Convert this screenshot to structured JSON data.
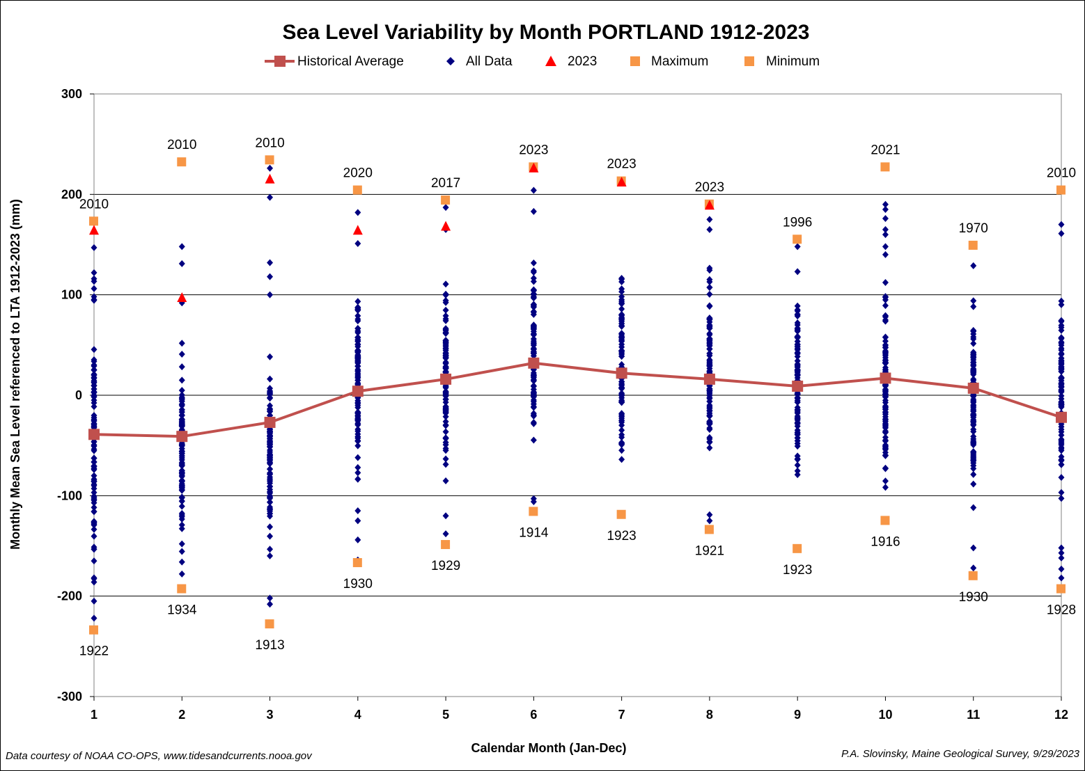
{
  "chart_data": {
    "type": "scatter",
    "title": "Sea Level Variability by Month PORTLAND  1912-2023",
    "xlabel": "Calendar Month (Jan-Dec)",
    "ylabel": "Monthly Mean Sea Level referenced to LTA 1912-2023 (mm)",
    "xlim": [
      1,
      12
    ],
    "ylim": [
      -300,
      300
    ],
    "x_ticks": [
      1,
      2,
      3,
      4,
      5,
      6,
      7,
      8,
      9,
      10,
      11,
      12
    ],
    "y_ticks": [
      -300,
      -200,
      -100,
      0,
      100,
      200,
      300
    ],
    "grid": "horizontal",
    "legend_position": "top",
    "legend": [
      "Historical Average",
      "All Data",
      "2023",
      "Maximum",
      "Minimum"
    ],
    "series": [
      {
        "name": "Historical Average",
        "type": "line",
        "color": "#c0504d",
        "x": [
          1,
          2,
          3,
          4,
          5,
          6,
          7,
          8,
          9,
          10,
          11,
          12
        ],
        "y": [
          -39,
          -41,
          -27,
          4,
          16,
          32,
          22,
          16,
          9,
          17,
          7,
          -22
        ]
      },
      {
        "name": "All Data",
        "type": "scatter",
        "color": "#000080",
        "months": [
          {
            "x": 1,
            "range": [
              -222,
              147
            ],
            "outliers": [
              -222,
              -205,
              -186,
              -165,
              122,
              116,
              147
            ]
          },
          {
            "x": 2,
            "range": [
              -180,
              73
            ],
            "outliers": [
              -178,
              -166,
              -148,
              92,
              131,
              148
            ]
          },
          {
            "x": 3,
            "range": [
              -180,
              60
            ],
            "outliers": [
              -208,
              -202,
              -160,
              100,
              118,
              132,
              197,
              226
            ]
          },
          {
            "x": 4,
            "range": [
              -108,
              140
            ],
            "outliers": [
              -164,
              -144,
              -125,
              -115,
              151,
              182
            ]
          },
          {
            "x": 5,
            "range": [
              -103,
              140
            ],
            "outliers": [
              -138,
              -120,
              165,
              187
            ]
          },
          {
            "x": 6,
            "range": [
              -90,
              175
            ],
            "outliers": [
              -106,
              -103,
              183,
              204,
              226
            ]
          },
          {
            "x": 7,
            "range": [
              -103,
              172
            ],
            "outliers": [
              212
            ]
          },
          {
            "x": 8,
            "range": [
              -100,
              148
            ],
            "outliers": [
              -125,
              -119,
              165,
              175,
              190
            ]
          },
          {
            "x": 9,
            "range": [
              -115,
              148
            ],
            "outliers": [
              148
            ]
          },
          {
            "x": 10,
            "range": [
              -118,
              127
            ],
            "outliers": [
              140,
              148,
              160,
              165,
              176,
              185,
              190
            ]
          },
          {
            "x": 11,
            "range": [
              -135,
              143
            ],
            "outliers": [
              -172,
              -152
            ]
          },
          {
            "x": 12,
            "range": [
              -135,
              132
            ],
            "outliers": [
              -182,
              -173,
              -162,
              -157,
              -152,
              161,
              170
            ]
          }
        ]
      },
      {
        "name": "2023",
        "type": "scatter",
        "color": "#ff0000",
        "marker": "triangle",
        "x": [
          1,
          2,
          3,
          4,
          5,
          6,
          7,
          8
        ],
        "y": [
          164,
          97,
          215,
          164,
          168,
          226,
          212,
          189
        ]
      },
      {
        "name": "Maximum",
        "type": "scatter",
        "color": "#f79646",
        "marker": "square",
        "x": [
          1,
          2,
          3,
          4,
          5,
          6,
          7,
          8,
          9,
          10,
          11,
          12
        ],
        "y": [
          173,
          232,
          234,
          204,
          194,
          227,
          213,
          190,
          155,
          227,
          149,
          204
        ],
        "labels": [
          "2010",
          "2010",
          "2010",
          "2020",
          "2017",
          "2023",
          "2023",
          "2023",
          "1996",
          "2021",
          "1970",
          "2010"
        ]
      },
      {
        "name": "Minimum",
        "type": "scatter",
        "color": "#f79646",
        "marker": "square",
        "x": [
          1,
          2,
          3,
          4,
          5,
          6,
          7,
          8,
          9,
          10,
          11,
          12
        ],
        "y": [
          -234,
          -193,
          -228,
          -167,
          -149,
          -116,
          -119,
          -134,
          -153,
          -125,
          -180,
          -193
        ],
        "labels": [
          "1922",
          "1934",
          "1913",
          "1930",
          "1929",
          "1914",
          "1923",
          "1921",
          "1923",
          "1916",
          "1930",
          "1928"
        ]
      }
    ]
  },
  "credits": {
    "left": "Data courtesy of NOAA CO-OPS, www.tidesandcurrents.nooa.gov",
    "right": "P.A. Slovinsky, Maine Geological Survey, 9/29/2023"
  }
}
